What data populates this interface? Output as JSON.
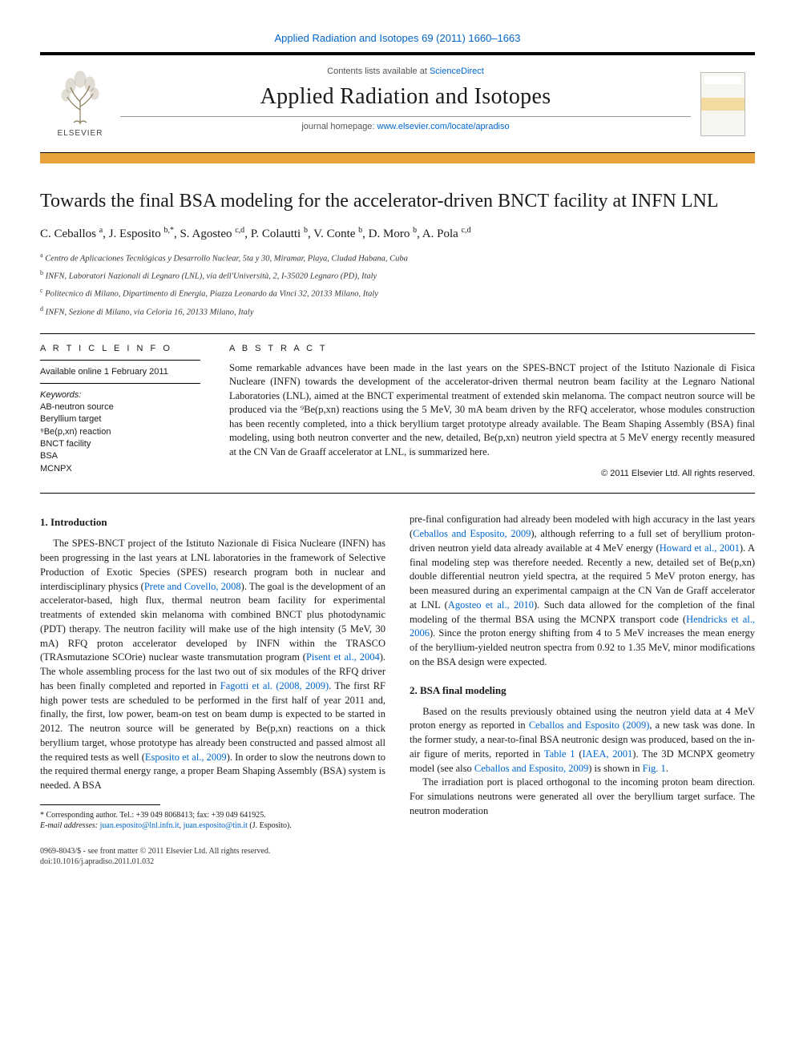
{
  "header": {
    "citation": "Applied Radiation and Isotopes 69 (2011) 1660–1663",
    "contents_prefix": "Contents lists available at ",
    "contents_link": "ScienceDirect",
    "journal_title": "Applied Radiation and Isotopes",
    "home_prefix": "journal homepage: ",
    "home_link": "www.elsevier.com/locate/apradiso",
    "elsevier_label": "ELSEVIER",
    "colors": {
      "bar": "#e8a33d",
      "link": "#0066cc",
      "rule": "#000000"
    }
  },
  "title": "Towards the final BSA modeling for the accelerator-driven BNCT facility at INFN LNL",
  "authors_html": "C. Ceballos <sup>a</sup>, J. Esposito <sup>b,*</sup>, S. Agosteo <sup>c,d</sup>, P. Colautti <sup>b</sup>, V. Conte <sup>b</sup>, D. Moro <sup>b</sup>, A. Pola <sup>c,d</sup>",
  "affiliations": [
    {
      "sup": "a",
      "text": "Centro de Aplicaciones Tecnlógicas y Desarrollo Nuclear, 5ta y 30, Miramar, Playa, Ciudad Habana, Cuba"
    },
    {
      "sup": "b",
      "text": "INFN, Laboratori Nazionali di Legnaro (LNL), via dell'Università, 2, I-35020 Legnaro (PD), Italy"
    },
    {
      "sup": "c",
      "text": "Politecnico di Milano, Dipartimento di Energia, Piazza Leonardo da Vinci 32, 20133 Milano, Italy"
    },
    {
      "sup": "d",
      "text": "INFN, Sezione di Milano, via Celoria 16, 20133 Milano, Italy"
    }
  ],
  "info": {
    "head": "A R T I C L E  I N F O",
    "available": "Available online 1 February 2011",
    "kw_head": "Keywords:",
    "keywords": [
      "AB-neutron source",
      "Beryllium target",
      "⁹Be(p,xn) reaction",
      "BNCT facility",
      "BSA",
      "MCNPX"
    ]
  },
  "abstract": {
    "head": "A B S T R A C T",
    "text": "Some remarkable advances have been made in the last years on the SPES-BNCT project of the Istituto Nazionale di Fisica Nucleare (INFN) towards the development of the accelerator-driven thermal neutron beam facility at the Legnaro National Laboratories (LNL), aimed at the BNCT experimental treatment of extended skin melanoma. The compact neutron source will be produced via the ⁹Be(p,xn) reactions using the 5 MeV, 30 mA beam driven by the RFQ accelerator, whose modules construction has been recently completed, into a thick beryllium target prototype already available. The Beam Shaping Assembly (BSA) final modeling, using both neutron converter and the new, detailed, Be(p,xn) neutron yield spectra at 5 MeV energy recently measured at the CN Van de Graaff accelerator at LNL, is summarized here.",
    "copyright": "© 2011 Elsevier Ltd. All rights reserved."
  },
  "sections": {
    "s1": {
      "head": "1. Introduction",
      "p1a": "The SPES-BNCT project of the Istituto Nazionale di Fisica Nucleare (INFN) has been progressing in the last years at LNL laboratories in the framework of Selective Production of Exotic Species (SPES) research program both in nuclear and interdisciplinary physics (",
      "r1": "Prete and Covello, 2008",
      "p1b": "). The goal is the development of an accelerator-based, high flux, thermal neutron beam facility for experimental treatments of extended skin melanoma with combined BNCT plus photodynamic (PDT) therapy. The neutron facility will make use of the high intensity (5 MeV, 30 mA) RFQ proton accelerator developed by INFN within the TRASCO (TRAsmutazione SCOrie) nuclear waste transmutation program (",
      "r2": "Pisent et al., 2004",
      "p1c": "). The whole assembling process for the last two out of six modules of the RFQ driver has been finally completed and reported in ",
      "r3": "Fagotti et al. (2008, 2009)",
      "p1d": ". The first RF high power tests are scheduled to be performed in the first half of year 2011 and, finally, the first, low power, beam-on test on beam dump is expected to be started in 2012. The neutron source will be generated by Be(p,xn) reactions on a thick beryllium target, whose prototype has already been constructed and passed almost all the required tests as well (",
      "r4": "Esposito et al., 2009",
      "p1e": "). In order to slow the neutrons down to the required thermal energy range, a proper Beam Shaping Assembly (BSA) system is needed. A BSA ",
      "p2a": "pre-final configuration had already been modeled with high accuracy in the last years (",
      "r5": "Ceballos and Esposito, 2009",
      "p2b": "), although referring to a full set of beryllium proton-driven neutron yield data already available at 4 MeV energy (",
      "r6": "Howard et al., 2001",
      "p2c": "). A final modeling step was therefore needed. Recently a new, detailed set of Be(p,xn) double differential neutron yield spectra, at the required 5 MeV proton energy, has been measured during an experimental campaign at the CN Van de Graff accelerator at LNL (",
      "r7": "Agosteo et al., 2010",
      "p2d": "). Such data allowed for the completion of the final modeling of the thermal BSA using the MCNPX transport code (",
      "r8": "Hendricks et al., 2006",
      "p2e": "). Since the proton energy shifting from 4 to 5 MeV increases the mean energy of the beryllium-yielded neutron spectra from 0.92 to 1.35 MeV, minor modifications on the BSA design were expected."
    },
    "s2": {
      "head": "2. BSA final modeling",
      "p1a": "Based on the results previously obtained using the neutron yield data at 4 MeV proton energy as reported in ",
      "r1": "Ceballos and Esposito (2009)",
      "p1b": ", a new task was done. In the former study, a near-to-final BSA neutronic design was produced, based on the in-air figure of merits, reported in ",
      "r2": "Table 1",
      "p1c": " (",
      "r3": "IAEA, 2001",
      "p1d": "). The 3D MCNPX geometry model (see also ",
      "r4": "Ceballos and Esposito, 2009",
      "p1e": ") is shown in ",
      "r5": "Fig. 1",
      "p1f": ".",
      "p2": "The irradiation port is placed orthogonal to the incoming proton beam direction. For simulations neutrons were generated all over the beryllium target surface. The neutron moderation"
    }
  },
  "footnote": {
    "star": "* Corresponding author. Tel.: +39 049 8068413; fax: +39 049 641925.",
    "email_label": "E-mail addresses: ",
    "email1": "juan.esposito@lnl.infn.it",
    "sep": ", ",
    "email2": "juan.esposito@tin.it",
    "tail": " (J. Esposito)."
  },
  "bottom": {
    "issn": "0969-8043/$ - see front matter © 2011 Elsevier Ltd. All rights reserved.",
    "doi": "doi:10.1016/j.apradiso.2011.01.032"
  }
}
